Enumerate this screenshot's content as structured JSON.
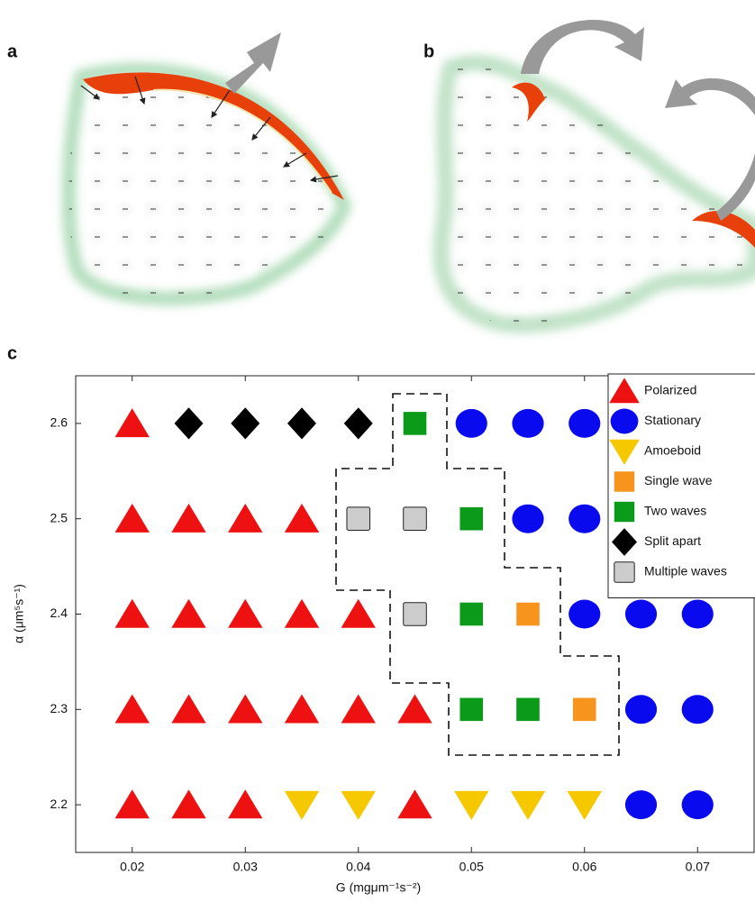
{
  "panel_labels": [
    "a",
    "b",
    "c"
  ],
  "chart_data": {
    "type": "scatter",
    "xlabel": "G (mgμm⁻¹s⁻²)",
    "ylabel": "α (μm⁵s⁻¹)",
    "xlim": [
      0.015,
      0.075
    ],
    "ylim": [
      2.15,
      2.65
    ],
    "xticks": [
      0.02,
      0.03,
      0.04,
      0.05,
      0.06,
      0.07
    ],
    "yticks": [
      2.2,
      2.3,
      2.4,
      2.5,
      2.6
    ],
    "legend": "upper right",
    "series": [
      {
        "name": "Polarized",
        "color": "#ee1111",
        "marker": "triangle-up",
        "x": [
          0.02,
          0.02,
          0.025,
          0.03,
          0.035,
          0.02,
          0.025,
          0.03,
          0.035,
          0.04,
          0.02,
          0.025,
          0.03,
          0.035,
          0.04,
          0.045,
          0.02,
          0.025,
          0.03,
          0.045
        ],
        "values": [
          2.6,
          2.5,
          2.5,
          2.5,
          2.5,
          2.4,
          2.4,
          2.4,
          2.4,
          2.4,
          2.3,
          2.3,
          2.3,
          2.3,
          2.3,
          2.3,
          2.2,
          2.2,
          2.2,
          2.2
        ]
      },
      {
        "name": "Stationary",
        "color": "#0a0aee",
        "marker": "circle",
        "x": [
          0.05,
          0.055,
          0.06,
          0.055,
          0.06,
          0.06,
          0.065,
          0.07,
          0.065,
          0.07,
          0.065,
          0.07
        ],
        "values": [
          2.6,
          2.6,
          2.6,
          2.5,
          2.5,
          2.4,
          2.4,
          2.4,
          2.3,
          2.3,
          2.2,
          2.2
        ]
      },
      {
        "name": "Amoeboid",
        "color": "#f6c800",
        "marker": "triangle-down",
        "x": [
          0.035,
          0.04,
          0.05,
          0.055,
          0.06
        ],
        "values": [
          2.2,
          2.2,
          2.2,
          2.2,
          2.2
        ]
      },
      {
        "name": "Single wave",
        "color": "#f7941d",
        "marker": "square",
        "x": [
          0.055,
          0.06
        ],
        "values": [
          2.4,
          2.3
        ]
      },
      {
        "name": "Two waves",
        "color": "#0b9a1a",
        "marker": "square",
        "x": [
          0.045,
          0.05,
          0.05,
          0.05,
          0.055
        ],
        "values": [
          2.6,
          2.5,
          2.4,
          2.3,
          2.3
        ]
      },
      {
        "name": "Split apart",
        "color": "#000000",
        "marker": "diamond",
        "x": [
          0.025,
          0.03,
          0.035,
          0.04
        ],
        "values": [
          2.6,
          2.6,
          2.6,
          2.6
        ]
      },
      {
        "name": "Multiple waves",
        "color": "#cccccc",
        "marker": "square-outline",
        "x": [
          0.04,
          0.045,
          0.045
        ],
        "values": [
          2.5,
          2.5,
          2.4
        ]
      }
    ]
  }
}
